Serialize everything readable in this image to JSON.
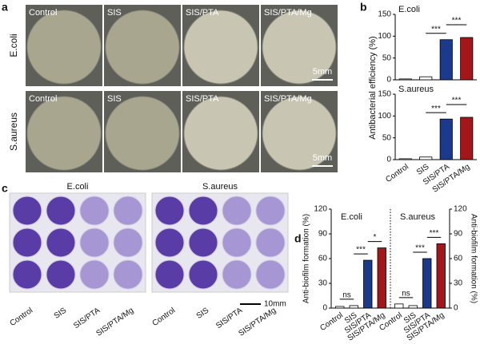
{
  "panel_a": {
    "label": "a",
    "rows": [
      {
        "name": "E.coli",
        "columns": [
          "Control",
          "SIS",
          "SIS/PTA",
          "SIS/PTA/Mg"
        ],
        "scale_bar": "5mm"
      },
      {
        "name": "S.aureus",
        "columns": [
          "Control",
          "SIS",
          "SIS/PTA",
          "SIS/PTA/Mg"
        ],
        "scale_bar": "5mm"
      }
    ]
  },
  "panel_c": {
    "label": "c",
    "scale_bar": "10mm",
    "plates": [
      {
        "name": "E.coli",
        "categories": [
          "Control",
          "SIS",
          "SIS/PTA",
          "SIS/PTA/Mg"
        ]
      },
      {
        "name": "S.aureus",
        "categories": [
          "Control",
          "SIS",
          "SIS/PTA",
          "SIS/PTA/Mg"
        ]
      }
    ]
  },
  "chart_data": [
    {
      "type": "bar",
      "panel_label": "b",
      "title": "E.coli",
      "y_label": "Antibacterial efficiency (%)",
      "values": [
        2,
        7,
        92,
        97
      ],
      "colors": [
        "#ffffff",
        "#ffffff",
        "#1b3a8c",
        "#a3171b"
      ],
      "ylim": [
        0,
        150
      ],
      "yticks": [
        0,
        50,
        100,
        150
      ],
      "annotations": [
        "***",
        "***"
      ]
    },
    {
      "type": "bar",
      "title": "S.aureus",
      "categories": [
        "Control",
        "SIS",
        "SIS/PTA",
        "SIS/PTA/Mg"
      ],
      "values": [
        2,
        6,
        93,
        97
      ],
      "colors": [
        "#ffffff",
        "#ffffff",
        "#1b3a8c",
        "#a3171b"
      ],
      "ylim": [
        0,
        150
      ],
      "yticks": [
        0,
        50,
        100,
        150
      ],
      "annotations": [
        "***",
        "***"
      ]
    },
    {
      "type": "grouped-bar",
      "panel_label": "d",
      "y_label": "Anti-biofilm formation (%)",
      "y2_label": "Anti-biofilm formation (%)",
      "ylim": [
        0,
        120
      ],
      "yticks": [
        0,
        30,
        60,
        90,
        120
      ],
      "y2lim": [
        0,
        120
      ],
      "y2ticks": [
        0,
        30,
        60,
        90,
        120
      ],
      "colors": [
        "#ffffff",
        "#ffffff",
        "#1b3a8c",
        "#a3171b"
      ],
      "groups": [
        {
          "title": "E.coli",
          "categories": [
            "Control",
            "SIS",
            "SIS/PTA",
            "SIS/PTA/Mg"
          ],
          "values": [
            2,
            3,
            58,
            73
          ],
          "annotations": [
            "ns",
            "***",
            "*"
          ]
        },
        {
          "title": "S.aureus",
          "categories": [
            "Control",
            "SIS",
            "SIS/PTA",
            "SIS/PTA/Mg"
          ],
          "values": [
            5,
            3,
            60,
            78
          ],
          "annotations": [
            "ns",
            "***",
            "***"
          ]
        }
      ]
    }
  ]
}
